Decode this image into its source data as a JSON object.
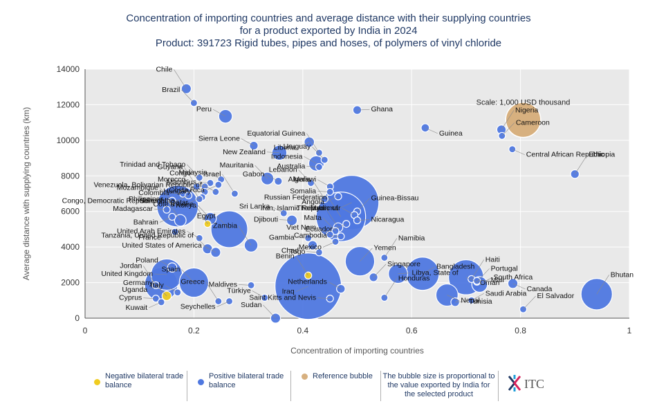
{
  "title_lines": [
    "Concentration of importing countries and average distance with their supplying countries",
    "for a product exported by India in 2024",
    "Product: 391723 Rigid tubes, pipes and hoses, of polymers of vinyl chloride"
  ],
  "legend": {
    "negative": "Negative bilateral trade balance",
    "positive": "Positive bilateral trade balance",
    "reference": "Reference bubble",
    "note": "The bubble size is proportional to the value exported by India for the selected product",
    "logo_text": "ITC"
  },
  "colors": {
    "positive": "#4f78e0",
    "negative": "#f0cc20",
    "reference": "#d7b07f",
    "title": "#1f3864",
    "plot_bg": "#e9e9e9"
  },
  "chart_data": {
    "type": "scatter",
    "title": "Concentration of importing countries and average distance with their supplying countries for a product exported by India in 2024 Product: 391723 Rigid tubes, pipes and hoses, of polymers of vinyl chloride",
    "xlabel": "Concentration of importing countries",
    "ylabel": "Average distance with supplying countries (km)",
    "xlim": [
      0,
      1
    ],
    "ylim": [
      0,
      14000
    ],
    "xticks": [
      "0",
      "0.2",
      "0.4",
      "0.6",
      "0.8",
      "1"
    ],
    "yticks": [
      "0",
      "2000",
      "4000",
      "6000",
      "8000",
      "10000",
      "12000",
      "14000"
    ],
    "grid": true,
    "scale_label": "Scale: 1,000 USD thousand",
    "reference_point": {
      "x": 0.805,
      "y": 11150,
      "value": 1000
    },
    "points": [
      {
        "name": "Chile",
        "x": 0.186,
        "y": 12900,
        "value": 80,
        "balance": "positive"
      },
      {
        "name": "Brazil",
        "x": 0.2,
        "y": 12100,
        "value": 40,
        "balance": "positive"
      },
      {
        "name": "Peru",
        "x": 0.258,
        "y": 11350,
        "value": 150,
        "balance": "positive"
      },
      {
        "name": "Ghana",
        "x": 0.5,
        "y": 11700,
        "value": 60,
        "balance": "positive"
      },
      {
        "name": "Guinea",
        "x": 0.625,
        "y": 10700,
        "value": 55,
        "balance": "positive"
      },
      {
        "name": "Nigeria",
        "x": 0.765,
        "y": 10600,
        "value": 70,
        "balance": "positive"
      },
      {
        "name": "Cameroon",
        "x": 0.766,
        "y": 10250,
        "value": 20,
        "balance": "positive"
      },
      {
        "name": "Sierra Leone",
        "x": 0.31,
        "y": 9700,
        "value": 60,
        "balance": "positive"
      },
      {
        "name": "New Zealand",
        "x": 0.357,
        "y": 9300,
        "value": 180,
        "balance": "positive"
      },
      {
        "name": "Liberia",
        "x": 0.412,
        "y": 9900,
        "value": 85,
        "balance": "positive"
      },
      {
        "name": "Equatorial Guinea",
        "x": 0.43,
        "y": 9300,
        "value": 10,
        "balance": "positive"
      },
      {
        "name": "Uruguay",
        "x": 0.44,
        "y": 8900,
        "value": 10,
        "balance": "positive"
      },
      {
        "name": "Indonesia",
        "x": 0.425,
        "y": 8700,
        "value": 190,
        "balance": "positive"
      },
      {
        "name": "Australia",
        "x": 0.43,
        "y": 8500,
        "value": 10,
        "balance": "positive"
      },
      {
        "name": "Central African Republic",
        "x": 0.785,
        "y": 9500,
        "value": 20,
        "balance": "positive"
      },
      {
        "name": "Ethiopia",
        "x": 0.9,
        "y": 8100,
        "value": 60,
        "balance": "positive"
      },
      {
        "name": "Trinidad and Tobago",
        "x": 0.21,
        "y": 7900,
        "value": 10,
        "balance": "positive"
      },
      {
        "name": "Malaysia",
        "x": 0.25,
        "y": 7800,
        "value": 10,
        "balance": "positive"
      },
      {
        "name": "Mauritius",
        "x": 0.23,
        "y": 7600,
        "value": 10,
        "balance": "positive"
      },
      {
        "name": "Costa Rica",
        "x": 0.245,
        "y": 7500,
        "value": 10,
        "balance": "positive"
      },
      {
        "name": "Guyana",
        "x": 0.205,
        "y": 7400,
        "value": 10,
        "balance": "positive"
      },
      {
        "name": "Congo",
        "x": 0.22,
        "y": 7400,
        "value": 10,
        "balance": "positive"
      },
      {
        "name": "Venezuela, Bolivarian Republic of",
        "x": 0.24,
        "y": 7100,
        "value": 10,
        "balance": "positive"
      },
      {
        "name": "Colombia",
        "x": 0.18,
        "y": 7000,
        "value": 10,
        "balance": "positive"
      },
      {
        "name": "Congo, Democratic Republic of the",
        "x": 0.19,
        "y": 6900,
        "value": 10,
        "balance": "positive"
      },
      {
        "name": "Israel",
        "x": 0.275,
        "y": 7000,
        "value": 10,
        "balance": "positive"
      },
      {
        "name": "Mauritania",
        "x": 0.335,
        "y": 7850,
        "value": 130,
        "balance": "positive"
      },
      {
        "name": "Gabon",
        "x": 0.355,
        "y": 7700,
        "value": 50,
        "balance": "positive"
      },
      {
        "name": "Hungary",
        "x": 0.22,
        "y": 7100,
        "value": 10,
        "balance": "positive"
      },
      {
        "name": "Qatar",
        "x": 0.215,
        "y": 6800,
        "value": 10,
        "balance": "positive"
      },
      {
        "name": "Morocco",
        "x": 0.21,
        "y": 6700,
        "value": 10,
        "balance": "positive"
      },
      {
        "name": "Lebanon",
        "x": 0.415,
        "y": 7600,
        "value": 30,
        "balance": "positive"
      },
      {
        "name": "Malawi",
        "x": 0.45,
        "y": 7400,
        "value": 10,
        "balance": "positive"
      },
      {
        "name": "Somalia",
        "x": 0.45,
        "y": 7100,
        "value": 10,
        "balance": "positive"
      },
      {
        "name": "Angola",
        "x": 0.465,
        "y": 6850,
        "value": 40,
        "balance": "positive"
      },
      {
        "name": "Algeria",
        "x": 0.44,
        "y": 6700,
        "value": 10,
        "balance": "positive"
      },
      {
        "name": "Mozambique",
        "x": 0.16,
        "y": 6600,
        "value": 20,
        "balance": "positive"
      },
      {
        "name": "Philippines",
        "x": 0.17,
        "y": 6300,
        "value": 1400,
        "balance": "positive"
      },
      {
        "name": "Madagascar",
        "x": 0.15,
        "y": 6100,
        "value": 10,
        "balance": "positive"
      },
      {
        "name": "Bahrain",
        "x": 0.16,
        "y": 5700,
        "value": 10,
        "balance": "positive"
      },
      {
        "name": "Senegal",
        "x": 0.175,
        "y": 5500,
        "value": 110,
        "balance": "positive"
      },
      {
        "name": "Kenya",
        "x": 0.23,
        "y": 5600,
        "value": 120,
        "balance": "positive"
      },
      {
        "name": "Sri Lanka",
        "x": 0.365,
        "y": 5900,
        "value": 10,
        "balance": "positive"
      },
      {
        "name": "Djibouti",
        "x": 0.38,
        "y": 5500,
        "value": 90,
        "balance": "positive"
      },
      {
        "name": "France",
        "x": 0.165,
        "y": 4850,
        "value": 10,
        "balance": "positive"
      },
      {
        "name": "Côte d'Ivoire",
        "x": 0.225,
        "y": 5300,
        "value": 20,
        "balance": "negative"
      },
      {
        "name": "Egypt",
        "x": 0.265,
        "y": 5000,
        "value": 1100,
        "balance": "positive"
      },
      {
        "name": "United Arab Emirates",
        "x": 0.21,
        "y": 4500,
        "value": 20,
        "balance": "positive"
      },
      {
        "name": "Gambia",
        "x": 0.41,
        "y": 4500,
        "value": 20,
        "balance": "positive"
      },
      {
        "name": "Chad",
        "x": 0.418,
        "y": 4100,
        "value": 70,
        "balance": "positive"
      },
      {
        "name": "Zambia",
        "x": 0.305,
        "y": 4100,
        "value": 150,
        "balance": "positive"
      },
      {
        "name": "Tanzania, United Republic of",
        "x": 0.225,
        "y": 3900,
        "value": 80,
        "balance": "positive"
      },
      {
        "name": "United States of America",
        "x": 0.24,
        "y": 3700,
        "value": 80,
        "balance": "positive"
      },
      {
        "name": "Togo",
        "x": 0.43,
        "y": 3700,
        "value": 30,
        "balance": "positive"
      },
      {
        "name": "Iran, Islamic Republic of",
        "x": 0.49,
        "y": 6500,
        "value": 2400,
        "balance": "positive"
      },
      {
        "name": "Russian Federation",
        "x": 0.47,
        "y": 5700,
        "value": 2000,
        "balance": "positive"
      },
      {
        "name": "Guinea-Bissau",
        "x": 0.5,
        "y": 6000,
        "value": 10,
        "balance": "positive"
      },
      {
        "name": "Myanmar",
        "x": 0.495,
        "y": 5800,
        "value": 10,
        "balance": "positive"
      },
      {
        "name": "Nicaragua",
        "x": 0.5,
        "y": 5500,
        "value": 10,
        "balance": "positive"
      },
      {
        "name": "Ecuador",
        "x": 0.48,
        "y": 5300,
        "value": 10,
        "balance": "positive"
      },
      {
        "name": "Thailand",
        "x": 0.465,
        "y": 5100,
        "value": 70,
        "balance": "positive"
      },
      {
        "name": "Malta",
        "x": 0.46,
        "y": 4900,
        "value": 10,
        "balance": "positive"
      },
      {
        "name": "Viet Nam",
        "x": 0.45,
        "y": 4700,
        "value": 10,
        "balance": "positive"
      },
      {
        "name": "Cambodia",
        "x": 0.47,
        "y": 4600,
        "value": 10,
        "balance": "positive"
      },
      {
        "name": "Mexico",
        "x": 0.46,
        "y": 4300,
        "value": 10,
        "balance": "positive"
      },
      {
        "name": "Namibia",
        "x": 0.55,
        "y": 3400,
        "value": 10,
        "balance": "positive"
      },
      {
        "name": "Yemen",
        "x": 0.505,
        "y": 3200,
        "value": 700,
        "balance": "positive"
      },
      {
        "name": "Bangladesh",
        "x": 0.62,
        "y": 2500,
        "value": 900,
        "balance": "positive"
      },
      {
        "name": "Libya, State of",
        "x": 0.575,
        "y": 2500,
        "value": 300,
        "balance": "positive"
      },
      {
        "name": "Oman",
        "x": 0.7,
        "y": 2300,
        "value": 1000,
        "balance": "positive"
      },
      {
        "name": "Haiti",
        "x": 0.71,
        "y": 2200,
        "value": 20,
        "balance": "positive"
      },
      {
        "name": "Portugal",
        "x": 0.72,
        "y": 2050,
        "value": 30,
        "balance": "positive"
      },
      {
        "name": "South Africa",
        "x": 0.725,
        "y": 1900,
        "value": 200,
        "balance": "positive"
      },
      {
        "name": "Mali",
        "x": 0.72,
        "y": 2100,
        "value": 20,
        "balance": "positive"
      },
      {
        "name": "Canada",
        "x": 0.786,
        "y": 1950,
        "value": 80,
        "balance": "positive"
      },
      {
        "name": "Bhutan",
        "x": 0.94,
        "y": 1350,
        "value": 800,
        "balance": "positive"
      },
      {
        "name": "El Salvador",
        "x": 0.805,
        "y": 500,
        "value": 10,
        "balance": "positive"
      },
      {
        "name": "Saudi Arabia",
        "x": 0.71,
        "y": 1000,
        "value": 30,
        "balance": "positive"
      },
      {
        "name": "Tunisia",
        "x": 0.68,
        "y": 900,
        "value": 60,
        "balance": "positive"
      },
      {
        "name": "Nepal",
        "x": 0.665,
        "y": 1300,
        "value": 400,
        "balance": "positive"
      },
      {
        "name": "Honduras",
        "x": 0.55,
        "y": 1150,
        "value": 40,
        "balance": "positive"
      },
      {
        "name": "Singapore",
        "x": 0.53,
        "y": 2300,
        "value": 60,
        "balance": "positive"
      },
      {
        "name": "Netherlands",
        "x": 0.47,
        "y": 1650,
        "value": 60,
        "balance": "positive"
      },
      {
        "name": "Saint Kitts and Nevis",
        "x": 0.45,
        "y": 1100,
        "value": 10,
        "balance": "positive"
      },
      {
        "name": "Iraq",
        "x": 0.41,
        "y": 1800,
        "value": 3600,
        "balance": "positive"
      },
      {
        "name": "Benin",
        "x": 0.41,
        "y": 2400,
        "value": 20,
        "balance": "negative"
      },
      {
        "name": "Sudan",
        "x": 0.35,
        "y": 0,
        "value": 80,
        "balance": "positive"
      },
      {
        "name": "Türkiye",
        "x": 0.33,
        "y": 1150,
        "value": 40,
        "balance": "positive"
      },
      {
        "name": "Maldives",
        "x": 0.305,
        "y": 1850,
        "value": 20,
        "balance": "positive"
      },
      {
        "name": "Seychelles",
        "x": 0.265,
        "y": 950,
        "value": 30,
        "balance": "positive"
      },
      {
        "name": "Greece",
        "x": 0.245,
        "y": 950,
        "value": 30,
        "balance": "positive"
      },
      {
        "name": "Spain",
        "x": 0.2,
        "y": 2000,
        "value": 700,
        "balance": "positive"
      },
      {
        "name": "Poland",
        "x": 0.16,
        "y": 2850,
        "value": 70,
        "balance": "positive"
      },
      {
        "name": "United Kingdom",
        "x": 0.15,
        "y": 2450,
        "value": 800,
        "balance": "positive"
      },
      {
        "name": "Uganda",
        "x": 0.14,
        "y": 1900,
        "value": 900,
        "balance": "positive"
      },
      {
        "name": "Jordan",
        "x": 0.13,
        "y": 1850,
        "value": 10,
        "balance": "positive"
      },
      {
        "name": "Germany",
        "x": 0.15,
        "y": 1250,
        "value": 70,
        "balance": "negative"
      },
      {
        "name": "Italy",
        "x": 0.17,
        "y": 1450,
        "value": 30,
        "balance": "positive"
      },
      {
        "name": "Cyprus",
        "x": 0.13,
        "y": 1100,
        "value": 10,
        "balance": "positive"
      },
      {
        "name": "Kuwait",
        "x": 0.14,
        "y": 900,
        "value": 10,
        "balance": "positive"
      }
    ]
  }
}
